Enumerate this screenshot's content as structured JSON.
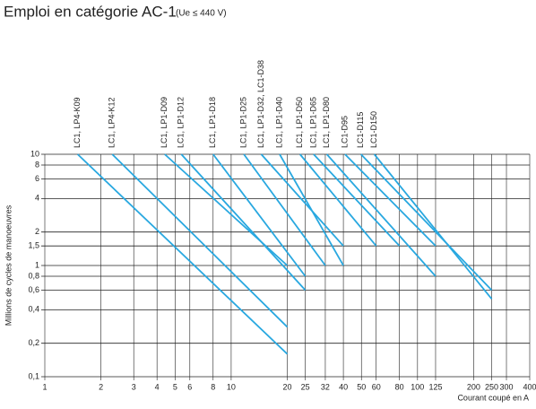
{
  "chart_data": {
    "type": "line",
    "title": "Emploi en catégorie AC-1",
    "subtitle": "(Ue ≤ 440 V)",
    "x_label": "Courant coupé en A",
    "y_label": "Millions de cycles de manoeuvres",
    "log_x": true,
    "log_y": true,
    "grid": true,
    "color": "#29a8e0",
    "xlim": [
      1,
      400
    ],
    "ylim": [
      0.1,
      10
    ],
    "xticks": [
      1,
      2,
      3,
      4,
      5,
      6,
      8,
      10,
      20,
      25,
      32,
      40,
      50,
      60,
      80,
      100,
      125,
      200,
      250,
      300,
      400
    ],
    "yticks": [
      {
        "value": 0.1,
        "label": "0,1"
      },
      {
        "value": 0.2,
        "label": "0,2"
      },
      {
        "value": 0.4,
        "label": "0,4"
      },
      {
        "value": 0.6,
        "label": "0,6"
      },
      {
        "value": 0.8,
        "label": "0,8"
      },
      1,
      {
        "value": 1.5,
        "label": "1,5"
      },
      2,
      4,
      6,
      8,
      10
    ],
    "series": [
      {
        "name": "LC1, LP4-K09",
        "x": [
          1.5,
          20
        ],
        "values": [
          10,
          0.16
        ]
      },
      {
        "name": "LC1, LP4-K12",
        "x": [
          2.3,
          20
        ],
        "values": [
          10,
          0.28
        ]
      },
      {
        "name": "LC1, LP1-D09",
        "x": [
          4.4,
          20
        ],
        "values": [
          10,
          1
        ]
      },
      {
        "name": "LC1, LP1-D12",
        "x": [
          5.4,
          25
        ],
        "values": [
          10,
          0.6
        ]
      },
      {
        "name": "LC1, LP1-D18",
        "x": [
          8,
          25
        ],
        "values": [
          10,
          0.8
        ]
      },
      {
        "name": "LC1, LP1-D25",
        "x": [
          11.7,
          32
        ],
        "values": [
          10,
          1
        ]
      },
      {
        "name": "LC1, LP1-D32, LC1-D38",
        "x": [
          14.5,
          40
        ],
        "values": [
          10,
          1.5
        ]
      },
      {
        "name": "LC1, LP1-D40",
        "x": [
          18.2,
          40
        ],
        "values": [
          10,
          1
        ]
      },
      {
        "name": "LC1, LP1-D50",
        "x": [
          23.4,
          60
        ],
        "values": [
          10,
          1.5
        ]
      },
      {
        "name": "LC1, LP1-D65",
        "x": [
          27.7,
          80
        ],
        "values": [
          10,
          1.5
        ]
      },
      {
        "name": "LC1, LP1-D80",
        "x": [
          32.6,
          125
        ],
        "values": [
          10,
          0.8
        ]
      },
      {
        "name": "LC1-D95",
        "x": [
          40.8,
          125
        ],
        "values": [
          10,
          1.5
        ]
      },
      {
        "name": "LC1-D115",
        "x": [
          49.7,
          250
        ],
        "values": [
          10,
          0.6
        ]
      },
      {
        "name": "LC1-D150",
        "x": [
          58.6,
          250
        ],
        "values": [
          10,
          0.5
        ]
      }
    ]
  }
}
